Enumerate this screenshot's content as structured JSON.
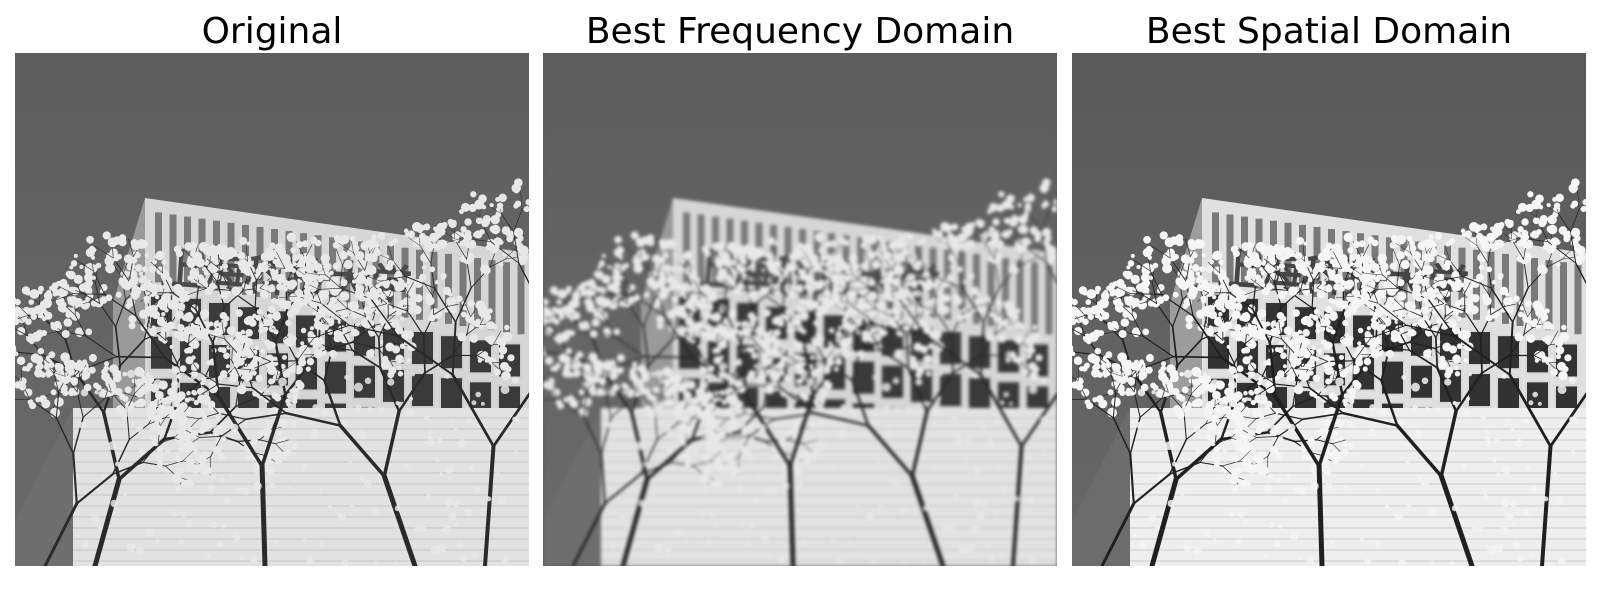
{
  "panels": [
    {
      "title": "Original",
      "style": "original"
    },
    {
      "title": "Best Frequency Domain",
      "style": "blurred"
    },
    {
      "title": "Best Spatial Domain",
      "style": "sharpened"
    }
  ],
  "colors": {
    "sky": "#5c5c5c",
    "facade": "#d6d6d6",
    "window": "#3a3a3a",
    "branch": "#2a2a2a",
    "blossom": "#e8e8e8"
  },
  "sign_text": "上海科技大学"
}
